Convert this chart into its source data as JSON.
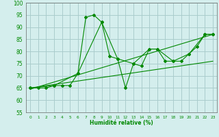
{
  "title": "",
  "xlabel": "Humidité relative (%)",
  "ylabel": "",
  "background_color": "#d4eeed",
  "grid_color": "#aacccc",
  "line_color": "#008800",
  "xlim": [
    -0.5,
    23.5
  ],
  "ylim": [
    55,
    100
  ],
  "yticks": [
    55,
    60,
    65,
    70,
    75,
    80,
    85,
    90,
    95,
    100
  ],
  "xticks": [
    0,
    1,
    2,
    3,
    4,
    5,
    6,
    7,
    8,
    9,
    10,
    11,
    12,
    13,
    14,
    15,
    16,
    17,
    18,
    19,
    20,
    21,
    22,
    23
  ],
  "line1_x": [
    0,
    1,
    2,
    3,
    4,
    5,
    6,
    7,
    8,
    9,
    10,
    11,
    12,
    13,
    14,
    15,
    16,
    17,
    18,
    19,
    20,
    21,
    22,
    23
  ],
  "line1_y": [
    65,
    65,
    65,
    66,
    66,
    66,
    71,
    94,
    95,
    92,
    78,
    77,
    65,
    75,
    74,
    81,
    81,
    76,
    76,
    76,
    79,
    82,
    87,
    87
  ],
  "line2_x": [
    0,
    3,
    6,
    9,
    11,
    13,
    15,
    16,
    18,
    20,
    22,
    23
  ],
  "line2_y": [
    65,
    66,
    71,
    92,
    77,
    75,
    81,
    81,
    76,
    79,
    87,
    87
  ],
  "line3_x": [
    0,
    23
  ],
  "line3_y": [
    65,
    76
  ],
  "line4_x": [
    0,
    23
  ],
  "line4_y": [
    64.5,
    87
  ]
}
